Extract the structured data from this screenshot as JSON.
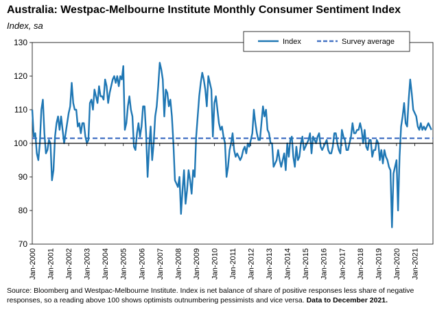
{
  "title": "Australia: Westpac-Melbourne Institute Monthly Consumer Sentiment Index",
  "subtitle": "Index, sa",
  "source_text": "Source: Bloomberg and Westpac-Melbourne Institute.  Index is net balance of share of positive responses less share of negative responses, so a reading above 100 shows optimists outnumbering pessimists and vice versa.",
  "source_bold": "Data to December 2021.",
  "colors": {
    "index": "#1f77b4",
    "average": "#4472c4"
  },
  "chart_data": {
    "type": "line",
    "title": "Australia: Westpac-Melbourne Institute Monthly Consumer Sentiment Index",
    "ylabel": "Index, sa",
    "ylim": [
      70,
      130
    ],
    "yticks": [
      70,
      80,
      90,
      100,
      110,
      120,
      130
    ],
    "x_start": "Jan-2000",
    "x_end": "Dec-2021",
    "x_tick_labels": [
      "Jan-2000",
      "Jan-2001",
      "Jan-2002",
      "Jan-2003",
      "Jan-2004",
      "Jan-2005",
      "Jan-2006",
      "Jan-2007",
      "Jan-2008",
      "Jan-2009",
      "Jan-2010",
      "Jan-2011",
      "Jan-2012",
      "Jan-2013",
      "Jan-2014",
      "Jan-2015",
      "Jan-2016",
      "Jan-2017",
      "Jan-2018",
      "Jan-2019",
      "Jan-2020",
      "Jan-2021"
    ],
    "legend_position": "top-right",
    "grid": false,
    "series": [
      {
        "name": "Index",
        "style": "solid",
        "values": [
          110,
          102,
          103,
          97,
          95,
          100,
          110,
          113,
          103,
          97,
          98,
          101,
          100,
          89,
          92,
          102,
          106,
          108,
          104,
          108,
          104,
          100,
          103,
          106,
          109,
          111,
          118,
          112,
          110,
          110,
          105,
          106,
          103,
          106,
          106,
          102,
          100,
          101,
          112,
          113,
          110,
          116,
          114,
          112,
          117,
          114,
          114,
          113,
          119,
          117,
          112,
          115,
          117,
          119,
          120,
          118,
          120,
          117,
          120,
          119,
          123,
          104,
          106,
          111,
          114,
          110,
          108,
          99,
          98,
          103,
          106,
          102,
          105,
          111,
          111,
          103,
          90,
          99,
          105,
          95,
          100,
          108,
          111,
          117,
          124,
          122,
          119,
          108,
          116,
          115,
          111,
          113,
          108,
          100,
          89,
          88,
          87,
          90,
          79,
          86,
          92,
          82,
          86,
          92,
          89,
          85,
          92,
          90,
          102,
          108,
          114,
          118,
          121,
          119,
          116,
          111,
          120,
          118,
          116,
          102,
          112,
          114,
          110,
          106,
          104,
          105,
          102,
          100,
          90,
          93,
          98,
          100,
          103,
          98,
          96,
          97,
          96,
          95,
          96,
          98,
          99,
          97,
          100,
          99,
          101,
          103,
          110,
          106,
          103,
          101,
          101,
          106,
          111,
          108,
          110,
          104,
          103,
          100,
          100,
          93,
          94,
          95,
          98,
          95,
          93,
          95,
          97,
          92,
          100,
          96,
          101,
          102,
          96,
          93,
          99,
          95,
          96,
          100,
          102,
          98,
          99,
          100,
          101,
          103,
          97,
          102,
          101,
          100,
          102,
          103,
          99,
          98,
          99,
          100,
          101,
          98,
          97,
          97,
          99,
          103,
          103,
          100,
          98,
          97,
          104,
          102,
          101,
          98,
          98,
          100,
          102,
          106,
          103,
          103,
          104,
          104,
          106,
          104,
          100,
          104,
          99,
          98,
          101,
          101,
          96,
          98,
          98,
          101,
          100,
          95,
          98,
          94,
          98,
          96,
          95,
          93,
          92,
          75,
          91,
          93,
          95,
          80,
          96,
          105,
          108,
          112,
          106,
          105,
          113,
          119,
          115,
          110,
          109,
          108,
          105,
          104,
          106,
          104,
          105,
          104,
          105,
          106,
          105,
          104
        ]
      },
      {
        "name": "Survey average",
        "style": "dashed",
        "value": 101.5
      }
    ]
  }
}
